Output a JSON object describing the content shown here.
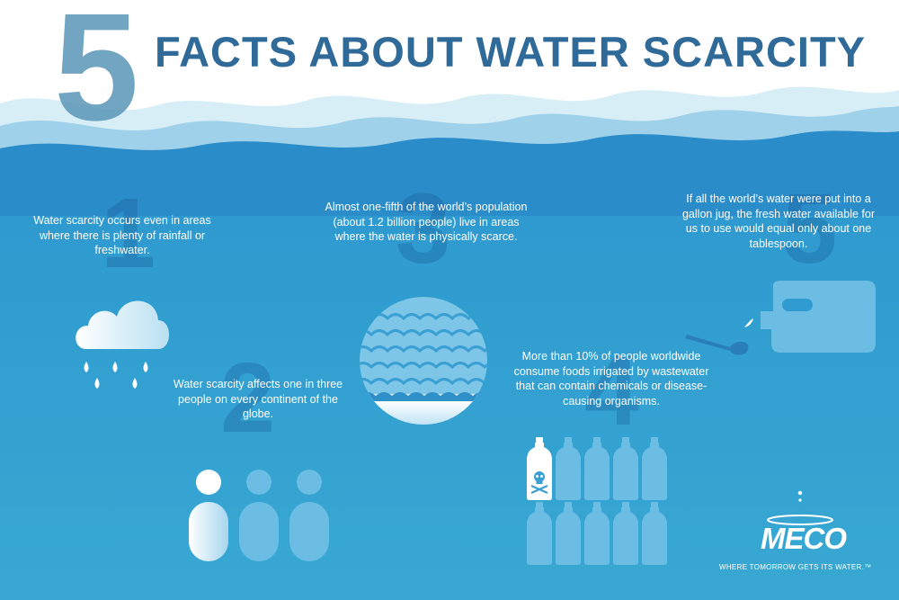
{
  "header": {
    "number": "5",
    "title": "FACTS ABOUT WATER SCARCITY"
  },
  "facts": [
    {
      "number": "1",
      "text": "Water scarcity occurs even in areas where there is plenty of rainfall or freshwater."
    },
    {
      "number": "2",
      "text": "Water scarcity affects one in three people on every continent of the globe."
    },
    {
      "number": "3",
      "text": "Almost one-fifth of the world’s population (about 1.2 billion people) live in areas where the water is physically scarce."
    },
    {
      "number": "4",
      "text": "More than 10% of people worldwide consume foods irrigated by wastewater that can contain chemicals or disease-causing organisms."
    },
    {
      "number": "5",
      "text": "If all the world’s water were put into a gallon jug, the fresh water available for us to use would equal only about one tablespoon."
    }
  ],
  "icons": [
    "rain-cloud-icon",
    "people-icon",
    "water-globe-icon",
    "contaminated-bottles-icon",
    "jug-spoon-icon"
  ],
  "logo": {
    "name": "MECO",
    "tagline": "WHERE TOMORROW GETS ITS WATER.™"
  },
  "colors": {
    "title": "#2f6a98",
    "ocean_top": "#2a8cc9",
    "ocean_bottom": "#38a8d2",
    "wave_light": "#d8eef7"
  }
}
